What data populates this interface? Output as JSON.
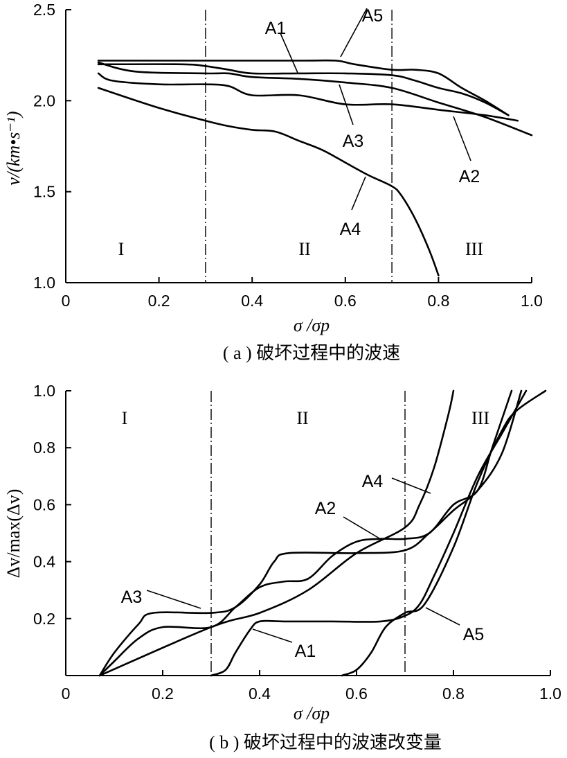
{
  "chart_data": [
    {
      "id": "a",
      "type": "line",
      "caption": "( a ) 破坏过程中的波速",
      "xlabel": "σ /σp",
      "ylabel": "v/(km•s⁻¹)",
      "xlim": [
        0,
        1.0
      ],
      "ylim": [
        1.0,
        2.5
      ],
      "xticks": [
        "0",
        "0.2",
        "0.4",
        "0.6",
        "0.8",
        "1.0"
      ],
      "yticks": [
        "1.0",
        "1.5",
        "2.0",
        "2.5"
      ],
      "dividers": [
        0.3,
        0.7
      ],
      "regions": [
        "I",
        "II",
        "III"
      ],
      "series": [
        {
          "name": "A1",
          "x": [
            0.07,
            0.25,
            0.3,
            0.35,
            0.4,
            0.5,
            0.6,
            0.7,
            0.75,
            0.8,
            0.85,
            0.9,
            0.95
          ],
          "y": [
            2.2,
            2.2,
            2.19,
            2.17,
            2.15,
            2.15,
            2.15,
            2.14,
            2.11,
            2.07,
            2.04,
            1.99,
            1.92
          ]
        },
        {
          "name": "A2",
          "x": [
            0.07,
            0.15,
            0.3,
            0.35,
            0.4,
            0.5,
            0.6,
            0.7,
            0.8,
            0.9,
            1.0
          ],
          "y": [
            2.21,
            2.16,
            2.15,
            2.15,
            2.13,
            2.12,
            2.1,
            2.07,
            1.99,
            1.91,
            1.81
          ]
        },
        {
          "name": "A3",
          "x": [
            0.07,
            0.1,
            0.2,
            0.3,
            0.35,
            0.4,
            0.5,
            0.6,
            0.7,
            0.8,
            0.9,
            0.97
          ],
          "y": [
            2.15,
            2.11,
            2.09,
            2.09,
            2.08,
            2.03,
            2.03,
            1.98,
            1.98,
            1.95,
            1.92,
            1.89
          ]
        },
        {
          "name": "A4",
          "x": [
            0.07,
            0.2,
            0.3,
            0.35,
            0.4,
            0.45,
            0.5,
            0.55,
            0.6,
            0.65,
            0.7,
            0.72,
            0.75,
            0.78,
            0.8
          ],
          "y": [
            2.07,
            1.96,
            1.89,
            1.86,
            1.84,
            1.83,
            1.78,
            1.73,
            1.66,
            1.59,
            1.53,
            1.48,
            1.35,
            1.18,
            1.04
          ]
        },
        {
          "name": "A5",
          "x": [
            0.07,
            0.3,
            0.5,
            0.58,
            0.62,
            0.7,
            0.75,
            0.8,
            0.85,
            0.9,
            0.95
          ],
          "y": [
            2.22,
            2.22,
            2.22,
            2.22,
            2.2,
            2.17,
            2.17,
            2.15,
            2.07,
            2.0,
            1.92
          ]
        }
      ],
      "labels": [
        "A1",
        "A2",
        "A3",
        "A4",
        "A5"
      ]
    },
    {
      "id": "b",
      "type": "line",
      "caption": "( b ) 破坏过程中的波速改变量",
      "xlabel": "σ /σp",
      "ylabel": "Δv/max(Δv)",
      "xlim": [
        0,
        1.0
      ],
      "ylim": [
        0,
        1.0
      ],
      "xticks": [
        "0",
        "0.2",
        "0.4",
        "0.6",
        "0.8",
        "1.0"
      ],
      "yticks": [
        "0.2",
        "0.4",
        "0.6",
        "0.8",
        "1.0"
      ],
      "dividers": [
        0.3,
        0.7
      ],
      "regions": [
        "I",
        "II",
        "III"
      ],
      "series": [
        {
          "name": "A1",
          "x": [
            0.3,
            0.33,
            0.35,
            0.38,
            0.4,
            0.45,
            0.55,
            0.65,
            0.7,
            0.73,
            0.76,
            0.8,
            0.85,
            0.9,
            0.95
          ],
          "y": [
            0,
            0.02,
            0.08,
            0.16,
            0.19,
            0.19,
            0.19,
            0.19,
            0.21,
            0.25,
            0.35,
            0.5,
            0.7,
            0.85,
            1.0
          ]
        },
        {
          "name": "A2",
          "x": [
            0.07,
            0.1,
            0.15,
            0.2,
            0.3,
            0.35,
            0.4,
            0.45,
            0.5,
            0.55,
            0.6,
            0.65,
            0.7,
            0.75,
            0.8,
            0.85,
            0.88,
            0.92
          ],
          "y": [
            0,
            0.05,
            0.13,
            0.17,
            0.17,
            0.24,
            0.31,
            0.33,
            0.34,
            0.42,
            0.47,
            0.48,
            0.48,
            0.5,
            0.6,
            0.65,
            0.8,
            1.0
          ]
        },
        {
          "name": "A3",
          "x": [
            0.07,
            0.1,
            0.15,
            0.18,
            0.3,
            0.35,
            0.4,
            0.43,
            0.46,
            0.6,
            0.7,
            0.75,
            0.8,
            0.85,
            0.9,
            0.94
          ],
          "y": [
            0,
            0.08,
            0.18,
            0.22,
            0.22,
            0.24,
            0.32,
            0.4,
            0.43,
            0.43,
            0.44,
            0.5,
            0.58,
            0.65,
            0.78,
            1.0
          ]
        },
        {
          "name": "A4",
          "x": [
            0.07,
            0.3,
            0.4,
            0.5,
            0.6,
            0.7,
            0.73,
            0.76,
            0.79,
            0.8
          ],
          "y": [
            0,
            0.17,
            0.22,
            0.3,
            0.43,
            0.52,
            0.6,
            0.73,
            0.92,
            1.0
          ]
        },
        {
          "name": "A5",
          "x": [
            0.57,
            0.6,
            0.63,
            0.66,
            0.7,
            0.74,
            0.8,
            0.85,
            0.9,
            0.93,
            0.99
          ],
          "y": [
            0,
            0.02,
            0.08,
            0.17,
            0.22,
            0.25,
            0.45,
            0.68,
            0.86,
            0.93,
            1.0
          ]
        }
      ],
      "labels": [
        "A3",
        "A1",
        "A4",
        "A2",
        "A5"
      ]
    }
  ]
}
